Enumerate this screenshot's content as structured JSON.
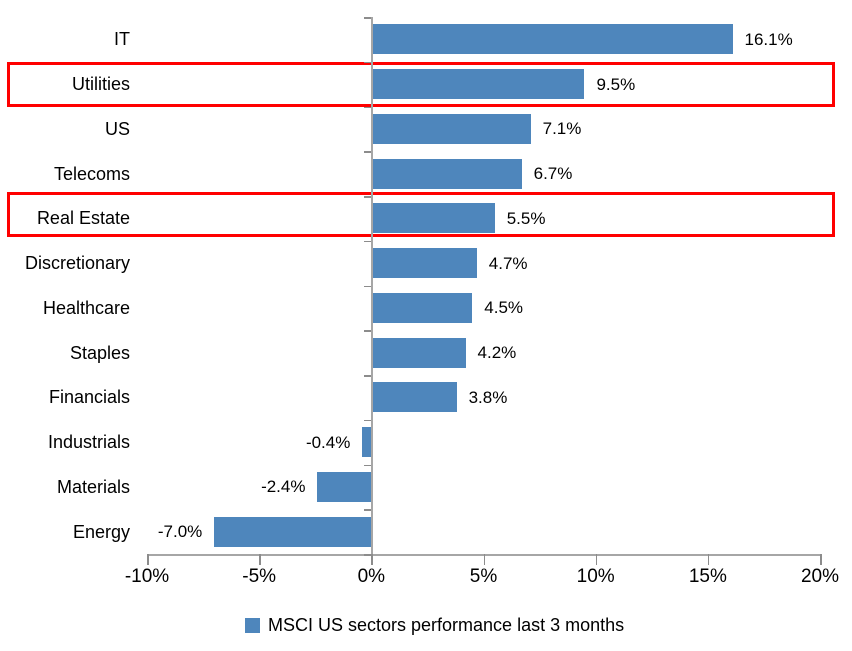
{
  "chart_data": {
    "type": "bar",
    "orientation": "horizontal",
    "categories": [
      "IT",
      "Utilities",
      "US",
      "Telecoms",
      "Real Estate",
      "Discretionary",
      "Healthcare",
      "Staples",
      "Financials",
      "Industrials",
      "Materials",
      "Energy"
    ],
    "values": [
      16.1,
      9.5,
      7.1,
      6.7,
      5.5,
      4.7,
      4.5,
      4.2,
      3.8,
      -0.4,
      -2.4,
      -7.0
    ],
    "value_labels": [
      "16.1%",
      "9.5%",
      "7.1%",
      "6.7%",
      "5.5%",
      "4.7%",
      "4.5%",
      "4.2%",
      "3.8%",
      "-0.4%",
      "-2.4%",
      "-7.0%"
    ],
    "xlim": [
      -10,
      20
    ],
    "x_ticks": [
      -10,
      -5,
      0,
      5,
      10,
      15,
      20
    ],
    "x_tick_labels": [
      "-10%",
      "-5%",
      "0%",
      "5%",
      "10%",
      "15%",
      "20%"
    ],
    "grid": false,
    "legend": "MSCI US sectors performance last 3 months",
    "legend_position": "bottom",
    "bar_color": "#4E86BC",
    "axis_color": "#A6A6A6",
    "tick_color": "#8C8C8C",
    "highlight_color": "#FF0000",
    "highlighted_categories": [
      "Utilities",
      "Real Estate"
    ],
    "title": "",
    "xlabel": "",
    "ylabel": ""
  }
}
